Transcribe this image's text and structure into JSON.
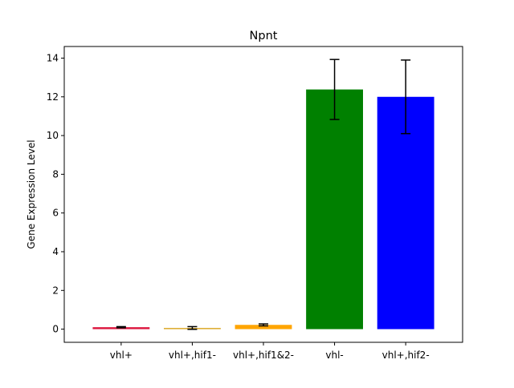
{
  "chart_data": {
    "type": "bar",
    "title": "Npnt",
    "xlabel": "",
    "ylabel": "Gene Expression Level",
    "categories": [
      "vhl+",
      "vhl+,hif1-",
      "vhl+,hif1&2-",
      "vhl-",
      "vhl+,hif2-"
    ],
    "values": [
      0.1,
      0.06,
      0.22,
      12.38,
      12.0
    ],
    "errors": [
      0.03,
      0.07,
      0.05,
      1.55,
      1.9
    ],
    "colors": [
      "#dc143c",
      "#daa520",
      "#ffa500",
      "#008000",
      "#0000ff"
    ],
    "ylim": [
      -0.68,
      14.6
    ],
    "yticks": [
      0,
      2,
      4,
      6,
      8,
      10,
      12,
      14
    ],
    "grid": false,
    "legend": false
  }
}
